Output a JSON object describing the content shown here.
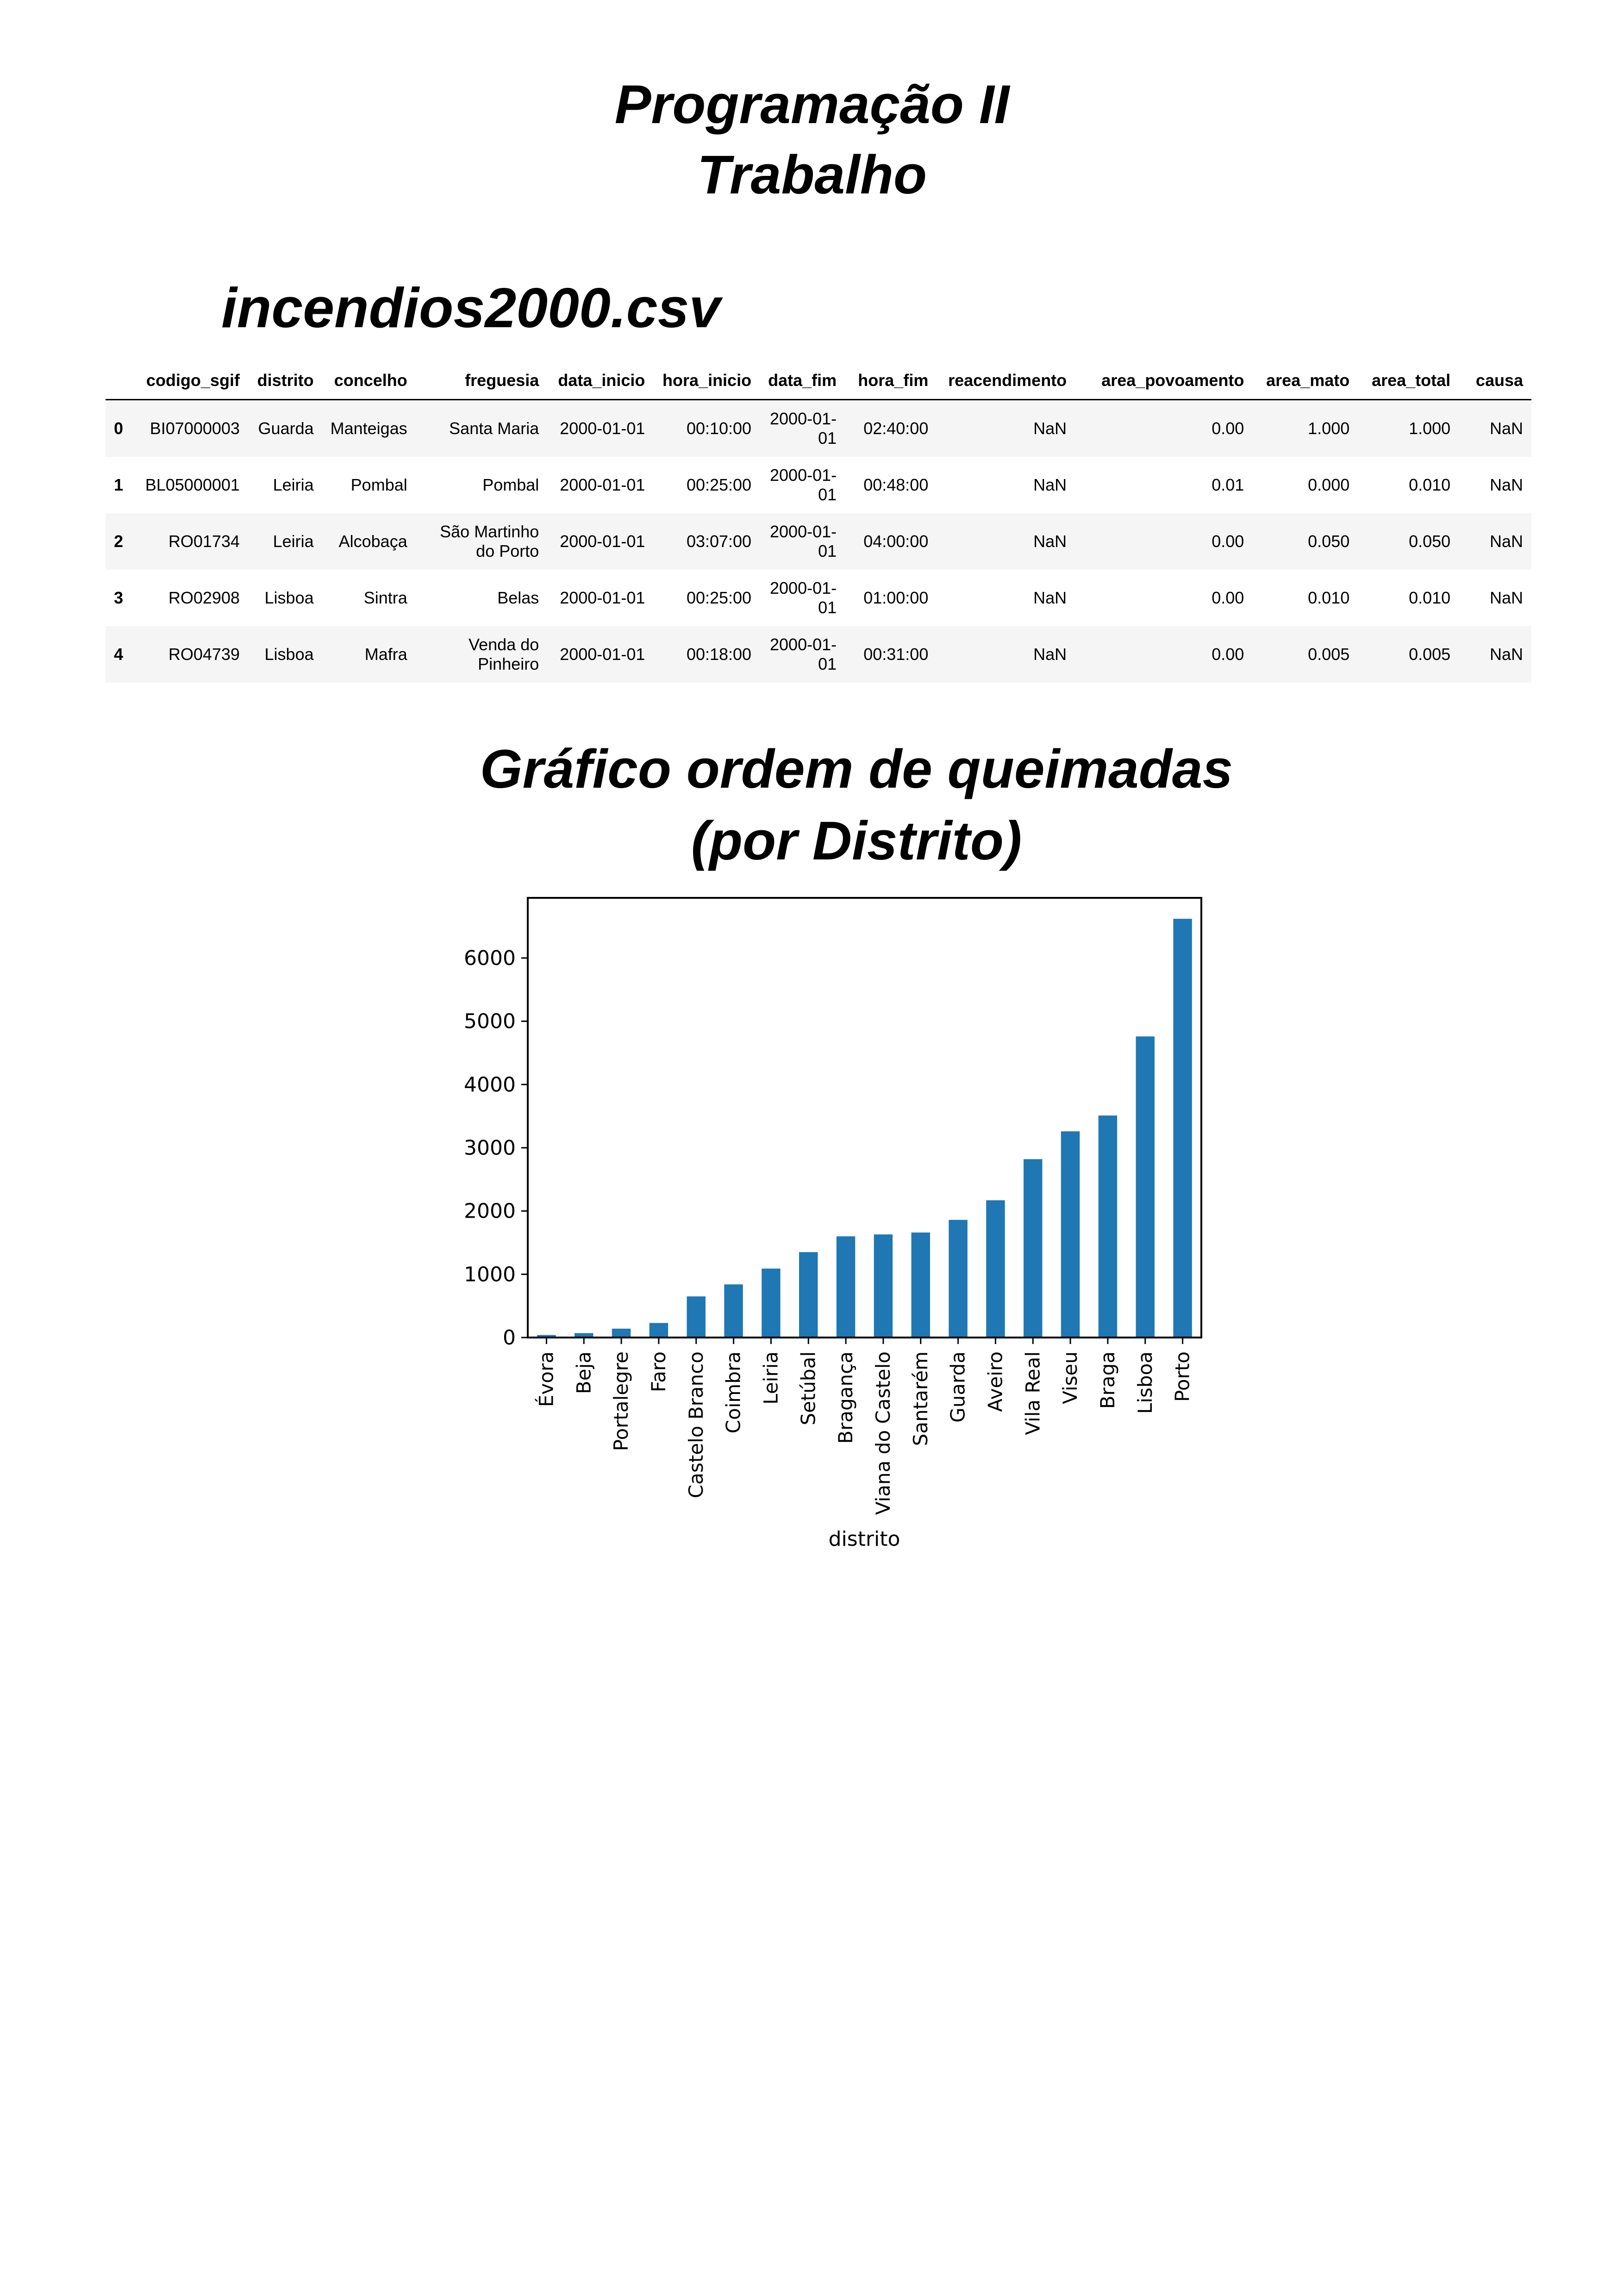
{
  "title": {
    "line1": "Programação II",
    "line2": "Trabalho"
  },
  "file_heading": "incendios2000.csv",
  "table": {
    "columns": [
      "",
      "codigo_sgif",
      "distrito",
      "concelho",
      "freguesia",
      "data_inicio",
      "hora_inicio",
      "data_fim",
      "hora_fim",
      "reacendimento",
      "area_povoamento",
      "area_mato",
      "area_total",
      "causa"
    ],
    "rows": [
      [
        "0",
        "BI07000003",
        "Guarda",
        "Manteigas",
        "Santa Maria",
        "2000-01-01",
        "00:10:00",
        "2000-01-01",
        "02:40:00",
        "NaN",
        "0.00",
        "1.000",
        "1.000",
        "NaN"
      ],
      [
        "1",
        "BL05000001",
        "Leiria",
        "Pombal",
        "Pombal",
        "2000-01-01",
        "00:25:00",
        "2000-01-01",
        "00:48:00",
        "NaN",
        "0.01",
        "0.000",
        "0.010",
        "NaN"
      ],
      [
        "2",
        "RO01734",
        "Leiria",
        "Alcobaça",
        "São Martinho do Porto",
        "2000-01-01",
        "03:07:00",
        "2000-01-01",
        "04:00:00",
        "NaN",
        "0.00",
        "0.050",
        "0.050",
        "NaN"
      ],
      [
        "3",
        "RO02908",
        "Lisboa",
        "Sintra",
        "Belas",
        "2000-01-01",
        "00:25:00",
        "2000-01-01",
        "01:00:00",
        "NaN",
        "0.00",
        "0.010",
        "0.010",
        "NaN"
      ],
      [
        "4",
        "RO04739",
        "Lisboa",
        "Mafra",
        "Venda do Pinheiro",
        "2000-01-01",
        "00:18:00",
        "2000-01-01",
        "00:31:00",
        "NaN",
        "0.00",
        "0.005",
        "0.005",
        "NaN"
      ]
    ]
  },
  "chart_heading": {
    "line1": "Gráfico ordem de queimadas",
    "line2": "(por Distrito)"
  },
  "chart_data": {
    "type": "bar",
    "title": "",
    "xlabel": "distrito",
    "ylabel": "",
    "categories": [
      "Évora",
      "Beja",
      "Portalegre",
      "Faro",
      "Castelo Branco",
      "Coimbra",
      "Leiria",
      "Setúbal",
      "Bragança",
      "Viana do Castelo",
      "Santarém",
      "Guarda",
      "Aveiro",
      "Vila Real",
      "Viseu",
      "Braga",
      "Lisboa",
      "Porto"
    ],
    "values": [
      40,
      70,
      140,
      230,
      650,
      840,
      1090,
      1350,
      1600,
      1630,
      1660,
      1860,
      2170,
      2820,
      3260,
      3510,
      4760,
      6620
    ],
    "yticks": [
      0,
      1000,
      2000,
      3000,
      4000,
      5000,
      6000
    ],
    "ylim": [
      0,
      6951
    ],
    "grid": false,
    "bar_color": "#1f77b4"
  }
}
